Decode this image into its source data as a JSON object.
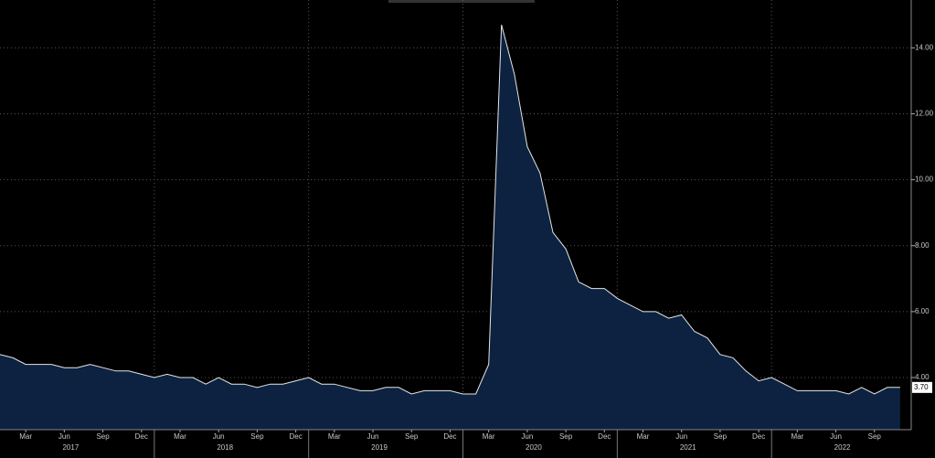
{
  "chart_data": {
    "type": "area",
    "x": [
      "2017-01",
      "2017-02",
      "2017-03",
      "2017-04",
      "2017-05",
      "2017-06",
      "2017-07",
      "2017-08",
      "2017-09",
      "2017-10",
      "2017-11",
      "2017-12",
      "2018-01",
      "2018-02",
      "2018-03",
      "2018-04",
      "2018-05",
      "2018-06",
      "2018-07",
      "2018-08",
      "2018-09",
      "2018-10",
      "2018-11",
      "2018-12",
      "2019-01",
      "2019-02",
      "2019-03",
      "2019-04",
      "2019-05",
      "2019-06",
      "2019-07",
      "2019-08",
      "2019-09",
      "2019-10",
      "2019-11",
      "2019-12",
      "2020-01",
      "2020-02",
      "2020-03",
      "2020-04",
      "2020-05",
      "2020-06",
      "2020-07",
      "2020-08",
      "2020-09",
      "2020-10",
      "2020-11",
      "2020-12",
      "2021-01",
      "2021-02",
      "2021-03",
      "2021-04",
      "2021-05",
      "2021-06",
      "2021-07",
      "2021-08",
      "2021-09",
      "2021-10",
      "2021-11",
      "2021-12",
      "2022-01",
      "2022-02",
      "2022-03",
      "2022-04",
      "2022-05",
      "2022-06",
      "2022-07",
      "2022-08",
      "2022-09",
      "2022-10",
      "2022-11"
    ],
    "values": [
      4.7,
      4.6,
      4.4,
      4.4,
      4.4,
      4.3,
      4.3,
      4.4,
      4.3,
      4.2,
      4.2,
      4.1,
      4.0,
      4.1,
      4.0,
      4.0,
      3.8,
      4.0,
      3.8,
      3.8,
      3.7,
      3.8,
      3.8,
      3.9,
      4.0,
      3.8,
      3.8,
      3.7,
      3.6,
      3.6,
      3.7,
      3.7,
      3.5,
      3.6,
      3.6,
      3.6,
      3.5,
      3.5,
      4.4,
      14.7,
      13.2,
      11.0,
      10.2,
      8.4,
      7.9,
      6.9,
      6.7,
      6.7,
      6.4,
      6.2,
      6.0,
      6.0,
      5.8,
      5.9,
      5.4,
      5.2,
      4.7,
      4.6,
      4.2,
      3.9,
      4.0,
      3.8,
      3.6,
      3.6,
      3.6,
      3.6,
      3.5,
      3.7,
      3.5,
      3.7,
      3.7
    ],
    "color": "#0c2240",
    "line_color": "#e6e6e6",
    "last_value_label": {
      "value": 3.7,
      "label": "3.70"
    },
    "ylim": [
      2.42,
      15.45
    ],
    "yticks": [
      {
        "value": 4,
        "label": "4.00"
      },
      {
        "value": 6,
        "label": "6.00"
      },
      {
        "value": 8,
        "label": "8.00"
      },
      {
        "value": 10,
        "label": "10.00"
      },
      {
        "value": 12,
        "label": "12.00"
      },
      {
        "value": 14,
        "label": "14.00"
      }
    ],
    "xticks": [
      {
        "value": "2017-03",
        "label": "Mar"
      },
      {
        "value": "2017-06",
        "label": "Jun"
      },
      {
        "value": "2017-09",
        "label": "Sep"
      },
      {
        "value": "2017-12",
        "label": "Dec"
      },
      {
        "value": "2018-03",
        "label": "Mar"
      },
      {
        "value": "2018-06",
        "label": "Jun"
      },
      {
        "value": "2018-09",
        "label": "Sep"
      },
      {
        "value": "2018-12",
        "label": "Dec"
      },
      {
        "value": "2019-03",
        "label": "Mar"
      },
      {
        "value": "2019-06",
        "label": "Jun"
      },
      {
        "value": "2019-09",
        "label": "Sep"
      },
      {
        "value": "2019-12",
        "label": "Dec"
      },
      {
        "value": "2020-03",
        "label": "Mar"
      },
      {
        "value": "2020-06",
        "label": "Jun"
      },
      {
        "value": "2020-09",
        "label": "Sep"
      },
      {
        "value": "2020-12",
        "label": "Dec"
      },
      {
        "value": "2021-03",
        "label": "Mar"
      },
      {
        "value": "2021-06",
        "label": "Jun"
      },
      {
        "value": "2021-09",
        "label": "Sep"
      },
      {
        "value": "2021-12",
        "label": "Dec"
      },
      {
        "value": "2022-03",
        "label": "Mar"
      },
      {
        "value": "2022-06",
        "label": "Jun"
      },
      {
        "value": "2022-09",
        "label": "Sep"
      }
    ],
    "year_ticks": [
      "2017",
      "2018",
      "2019",
      "2020",
      "2021",
      "2022"
    ],
    "grid": true
  }
}
